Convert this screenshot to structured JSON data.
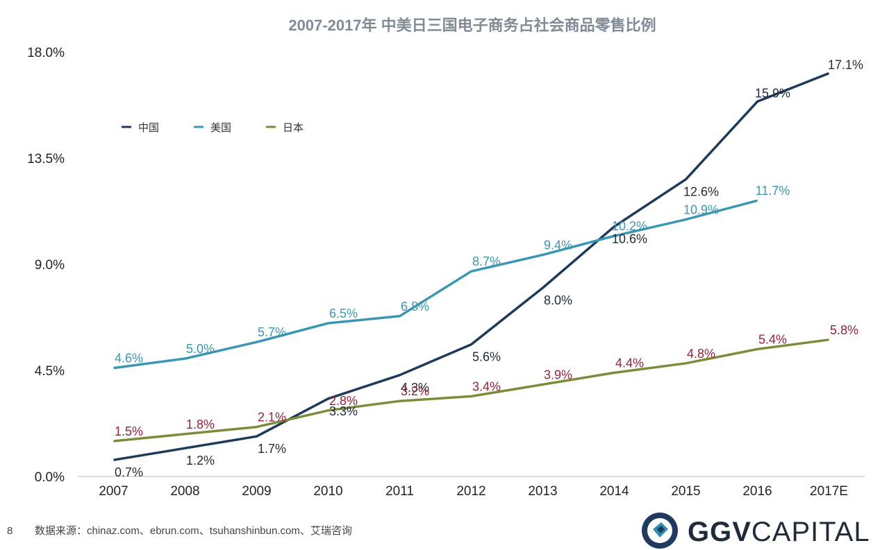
{
  "chart_data": {
    "type": "line",
    "title": "2007-2017年 中美日三国电子商务占社会商品零售比例",
    "categories": [
      "2007",
      "2008",
      "2009",
      "2010",
      "2011",
      "2012",
      "2013",
      "2014",
      "2015",
      "2016",
      "2017E"
    ],
    "yticks": [
      "0.0%",
      "4.5%",
      "9.0%",
      "13.5%",
      "18.0%"
    ],
    "ylim": [
      0,
      18
    ],
    "legend_position": "top-left",
    "series": [
      {
        "name": "中国",
        "color": "#1d3a5c",
        "label_color": "#1f2a36",
        "values": [
          0.7,
          1.2,
          1.7,
          3.3,
          4.3,
          5.6,
          8.0,
          10.6,
          12.6,
          15.9,
          17.1
        ],
        "labels": [
          "0.7%",
          "1.2%",
          "1.7%",
          "3.3%",
          "4.3%",
          "5.6%",
          "8.0%",
          "10.6%",
          "12.6%",
          "15.9%",
          "17.1%"
        ]
      },
      {
        "name": "美国",
        "color": "#3a97b3",
        "label_color": "#3a97b3",
        "values": [
          4.6,
          5.0,
          5.7,
          6.5,
          6.8,
          8.7,
          9.4,
          10.2,
          10.9,
          11.7,
          null
        ],
        "labels": [
          "4.6%",
          "5.0%",
          "5.7%",
          "6.5%",
          "6.8%",
          "8.7%",
          "9.4%",
          "10.2%",
          "10.9%",
          "11.7%",
          ""
        ]
      },
      {
        "name": "日本",
        "color": "#7d8b3a",
        "label_color": "#9b1f3a",
        "values": [
          1.5,
          1.8,
          2.1,
          2.8,
          3.2,
          3.4,
          3.9,
          4.4,
          4.8,
          5.4,
          5.8
        ],
        "labels": [
          "1.5%",
          "1.8%",
          "2.1%",
          "2.8%",
          "3.2%",
          "3.4%",
          "3.9%",
          "4.4%",
          "4.8%",
          "5.4%",
          "5.8%"
        ]
      }
    ]
  },
  "footer": {
    "page_number": "8",
    "source": "数据来源：chinaz.com、ebrun.com、tsuhanshinbun.com、艾瑞咨询",
    "brand_bold": "GGV",
    "brand_light": "CAPITAL"
  }
}
